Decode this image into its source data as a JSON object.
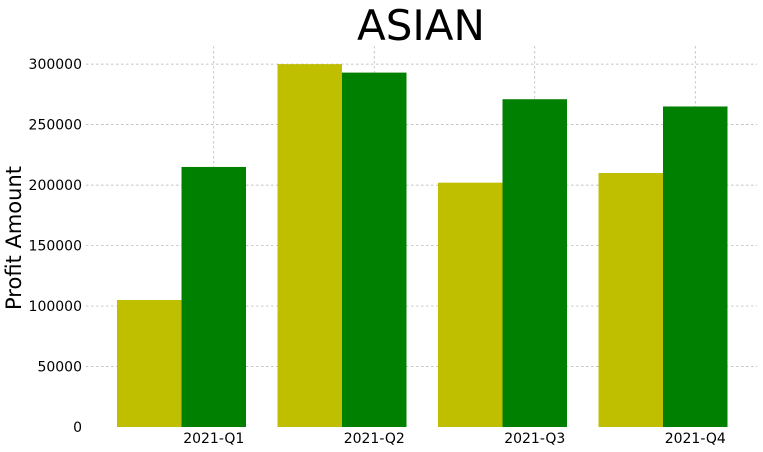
{
  "chart_data": {
    "type": "bar",
    "title": "ASIAN",
    "xlabel": "",
    "ylabel": "Profit Amount",
    "categories": [
      "2021-Q1",
      "2021-Q2",
      "2021-Q3",
      "2021-Q4"
    ],
    "series": [
      {
        "values": [
          105000,
          300000,
          202000,
          210000
        ],
        "color": "#bfbf00"
      },
      {
        "values": [
          215000,
          293000,
          271000,
          265000
        ],
        "color": "#008000"
      }
    ],
    "ylim": [
      0,
      315000
    ],
    "yticks": [
      0,
      50000,
      100000,
      150000,
      200000,
      250000,
      300000
    ],
    "grid": true,
    "legend": "none"
  }
}
